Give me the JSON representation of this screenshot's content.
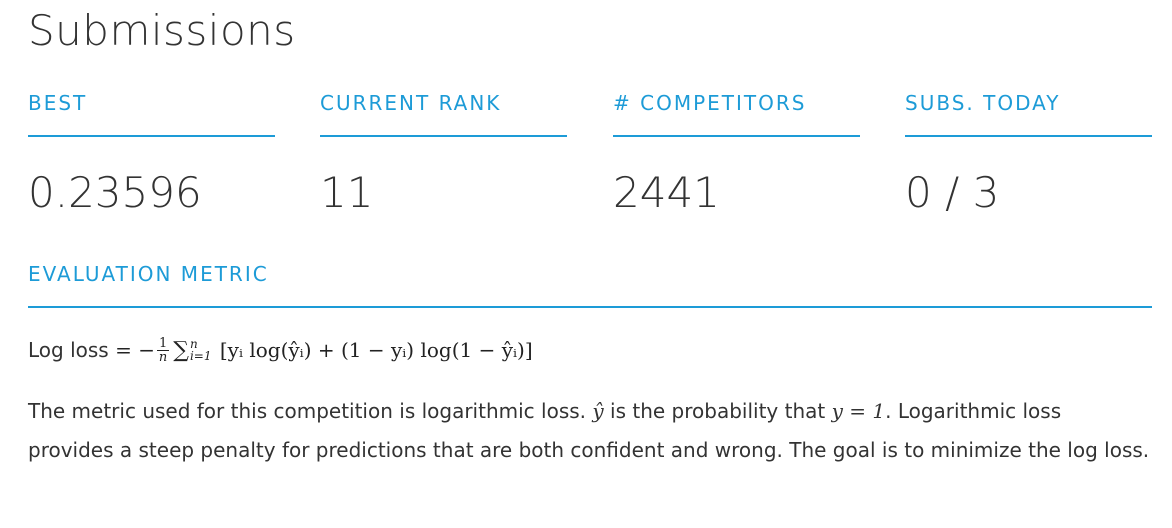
{
  "header": {
    "title": "Submissions"
  },
  "stats": [
    {
      "label": "BEST",
      "value": "0.23596"
    },
    {
      "label": "CURRENT RANK",
      "value": "11"
    },
    {
      "label": "# COMPETITORS",
      "value": "2441"
    },
    {
      "label": "SUBS. TODAY",
      "value": "0 / 3"
    }
  ],
  "metric": {
    "heading": "EVALUATION METRIC",
    "formula_label": "Log loss",
    "formula": {
      "eq": " = −",
      "frac_num": "1",
      "frac_den": "n",
      "sigma": "∑",
      "sum_upper": "n",
      "sum_lower": "i=1",
      "body": " [yᵢ log(ŷᵢ) + (1 − yᵢ) log(1 − ŷᵢ)]"
    },
    "desc_part1": "The metric used for this competition is logarithmic loss. ",
    "desc_math1": "ŷ",
    "desc_part2": " is the probability that ",
    "desc_math2": "y = 1",
    "desc_part3": ". Logarithmic loss provides a steep penalty for predictions that are both confident and wrong. The goal is to minimize the log loss."
  },
  "colors": {
    "accent": "#1d9bd7",
    "text": "#333333"
  }
}
